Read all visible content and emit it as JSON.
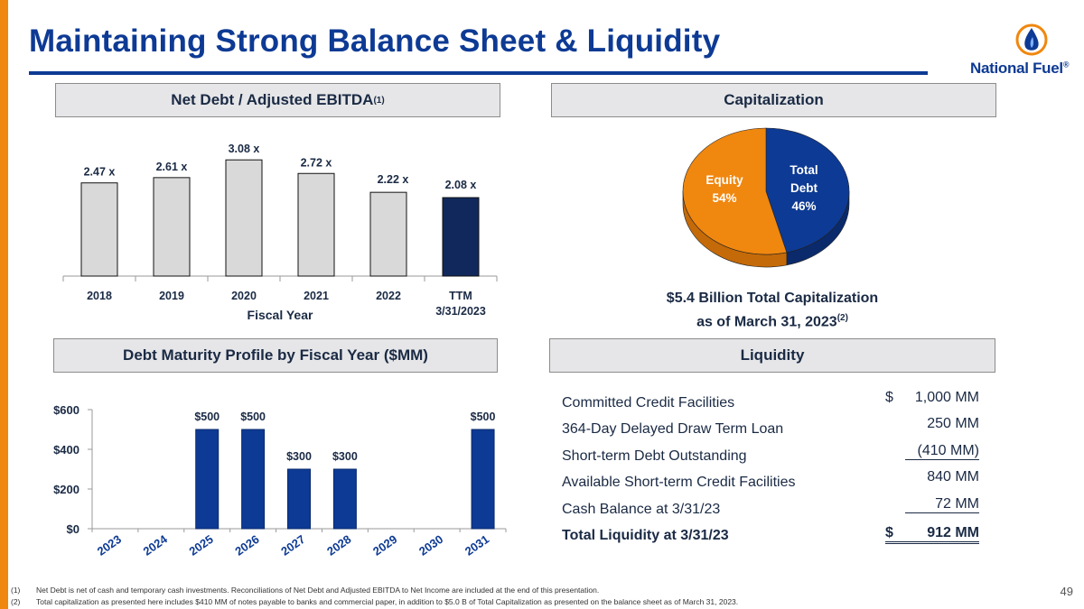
{
  "title": "Maintaining Strong Balance Sheet & Liquidity",
  "logo": {
    "text": "National Fuel",
    "mark": "®"
  },
  "colors": {
    "brand_blue": "#0d3a94",
    "accent_orange": "#f0870f",
    "navy": "#10285c",
    "bar_gray": "#d9d9d9"
  },
  "sections": {
    "ebitda": {
      "label": "Net Debt / Adjusted EBITDA",
      "sup": "(1)"
    },
    "capitalization": {
      "label": "Capitalization"
    },
    "maturity": {
      "label": "Debt Maturity Profile by Fiscal Year ($MM)"
    },
    "liquidity": {
      "label": "Liquidity"
    }
  },
  "chart_data": [
    {
      "type": "bar",
      "title": "Net Debt / Adjusted EBITDA",
      "categories": [
        "2018",
        "2019",
        "2020",
        "2021",
        "2022",
        "TTM"
      ],
      "category_sublabels": [
        "",
        "",
        "",
        "",
        "",
        "3/31/2023"
      ],
      "values": [
        2.47,
        2.61,
        3.08,
        2.72,
        2.22,
        2.08
      ],
      "data_labels": [
        "2.47 x",
        "2.61 x",
        "3.08 x",
        "2.72 x",
        "2.22 x",
        "2.08 x"
      ],
      "xlabel": "Fiscal Year",
      "ylabel": "",
      "ylim": [
        0,
        3.3
      ],
      "highlight_index": 5
    },
    {
      "type": "pie",
      "title": "Capitalization",
      "slices": [
        {
          "name": "Total Debt",
          "line1": "Total",
          "line2": "Debt",
          "value": 46,
          "label": "46%",
          "color": "#0d3a94"
        },
        {
          "name": "Equity",
          "line1": "Equity",
          "value": 54,
          "label": "54%",
          "color": "#f0870f"
        }
      ],
      "caption_line1": "$5.4 Billion Total Capitalization",
      "caption_line2": "as of March 31, 2023",
      "caption_sup": "(2)"
    },
    {
      "type": "bar",
      "title": "Debt Maturity Profile by Fiscal Year ($MM)",
      "categories": [
        "2023",
        "2024",
        "2025",
        "2026",
        "2027",
        "2028",
        "2029",
        "2030",
        "2031"
      ],
      "values": [
        0,
        0,
        500,
        500,
        300,
        300,
        0,
        0,
        500
      ],
      "data_labels": [
        "",
        "",
        "$500",
        "$500",
        "$300",
        "$300",
        "",
        "",
        "$500"
      ],
      "yticks": [
        0,
        200,
        400,
        600
      ],
      "ytick_labels": [
        "$0",
        "$200",
        "$400",
        "$600"
      ],
      "ylim": [
        0,
        600
      ],
      "xlabel": "",
      "ylabel": ""
    }
  ],
  "liquidity": {
    "rows": [
      {
        "label": "Committed Credit Facilities",
        "dollar": "$",
        "value": "1,000 MM",
        "style": ""
      },
      {
        "label": "364-Day Delayed Draw Term Loan",
        "dollar": "",
        "value": "250 MM",
        "style": ""
      },
      {
        "label": "Short-term Debt Outstanding",
        "dollar": "",
        "value": "(410 MM)",
        "style": "underline"
      },
      {
        "label": "Available Short-term Credit Facilities",
        "dollar": "",
        "value": "840 MM",
        "style": ""
      },
      {
        "label": "Cash Balance at 3/31/23",
        "dollar": "",
        "value": "72 MM",
        "style": "underline"
      },
      {
        "label": "Total Liquidity at 3/31/23",
        "dollar": "$",
        "value": "912 MM",
        "style": "total"
      }
    ]
  },
  "footnotes": [
    {
      "num": "(1)",
      "text": "Net Debt is net of cash and temporary cash investments.  Reconciliations of Net Debt and Adjusted EBITDA to Net Income are included at the end of this presentation."
    },
    {
      "num": "(2)",
      "text": "Total capitalization as presented here includes $410 MM of notes payable to banks and commercial paper, in addition to $5.0 B of Total Capitalization as presented on the balance sheet as of March 31, 2023."
    }
  ],
  "page_number": "49"
}
